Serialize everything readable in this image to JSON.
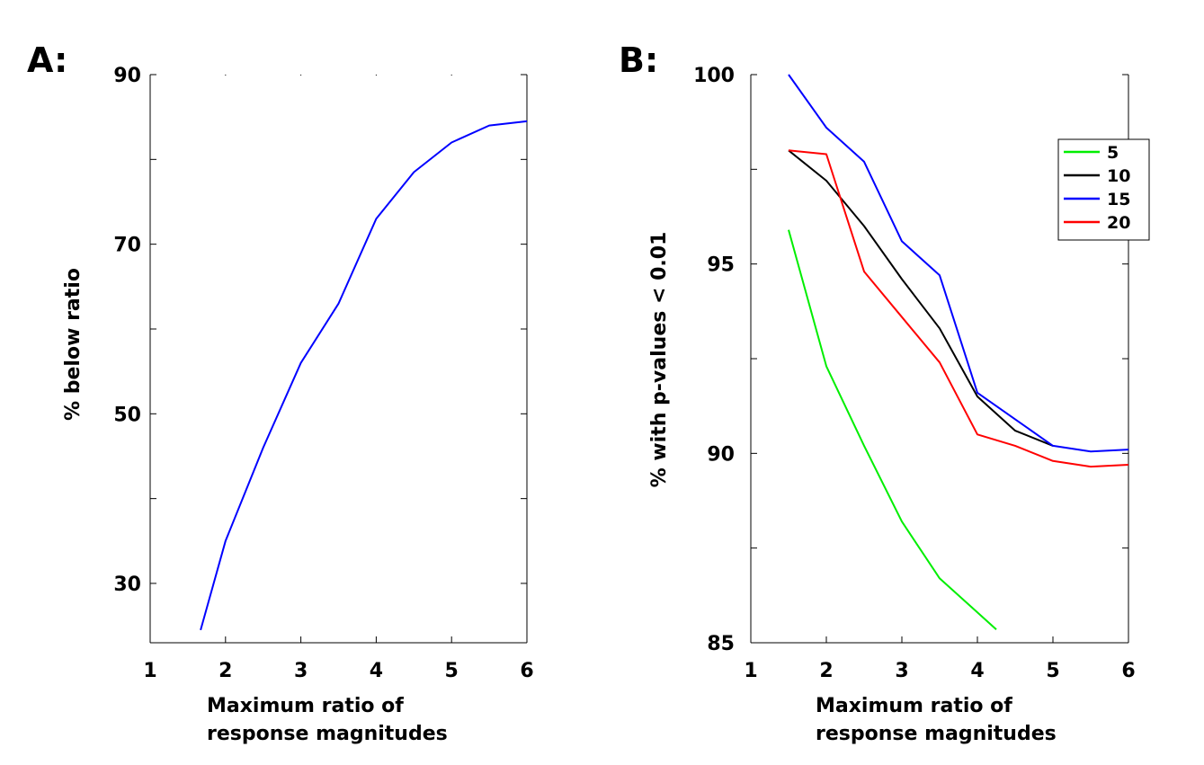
{
  "chart_data": [
    {
      "panel": "A:",
      "type": "line",
      "xlabel": [
        "Maximum ratio of",
        "response magnitudes"
      ],
      "ylabel": "% below ratio",
      "xlim": [
        1,
        6
      ],
      "ylim": [
        23,
        90
      ],
      "x_ticks": [
        "1",
        "2",
        "3",
        "4",
        "5",
        "6"
      ],
      "y_ticks": [
        "30",
        "50",
        "70",
        "90"
      ],
      "grid": false,
      "series": [
        {
          "color": "#0000ff",
          "x": [
            1.67,
            2,
            2.5,
            3,
            3.5,
            4,
            4.5,
            5,
            5.5,
            6
          ],
          "y": [
            24.5,
            35,
            46,
            56,
            63,
            73,
            78.5,
            82,
            84,
            84.5
          ]
        }
      ]
    },
    {
      "panel": "B:",
      "type": "line",
      "xlabel": [
        "Maximum ratio of",
        "response magnitudes"
      ],
      "ylabel": "% with p-values < 0.01",
      "xlim": [
        1,
        6
      ],
      "ylim": [
        85,
        100
      ],
      "x_ticks": [
        "1",
        "2",
        "3",
        "4",
        "5",
        "6"
      ],
      "y_ticks": [
        "85",
        "90",
        "95",
        "100"
      ],
      "grid": false,
      "legend": "top-right",
      "series": [
        {
          "name": "5",
          "color": "#00ee00",
          "x": [
            1.5,
            2,
            2.5,
            3,
            3.5,
            4,
            4.25
          ],
          "y": [
            95.9,
            92.3,
            90.2,
            88.2,
            86.7,
            85.8,
            85.35
          ]
        },
        {
          "name": "10",
          "color": "#000000",
          "x": [
            1.5,
            2,
            2.5,
            3,
            3.5,
            4,
            4.5,
            5
          ],
          "y": [
            98.0,
            97.2,
            96.0,
            94.6,
            93.3,
            91.5,
            90.6,
            90.2
          ]
        },
        {
          "name": "15",
          "color": "#0000ff",
          "x": [
            1.5,
            2,
            2.5,
            3,
            3.5,
            4,
            4.5,
            5,
            5.5,
            6
          ],
          "y": [
            100.0,
            98.6,
            97.7,
            95.6,
            94.7,
            91.6,
            90.9,
            90.2,
            90.05,
            90.1
          ]
        },
        {
          "name": "20",
          "color": "#ff0000",
          "x": [
            1.5,
            2,
            2.5,
            3,
            3.5,
            4,
            4.5,
            5,
            5.5,
            6
          ],
          "y": [
            98.0,
            97.9,
            94.8,
            93.6,
            92.4,
            90.5,
            90.2,
            89.8,
            89.65,
            89.7
          ]
        }
      ]
    }
  ]
}
